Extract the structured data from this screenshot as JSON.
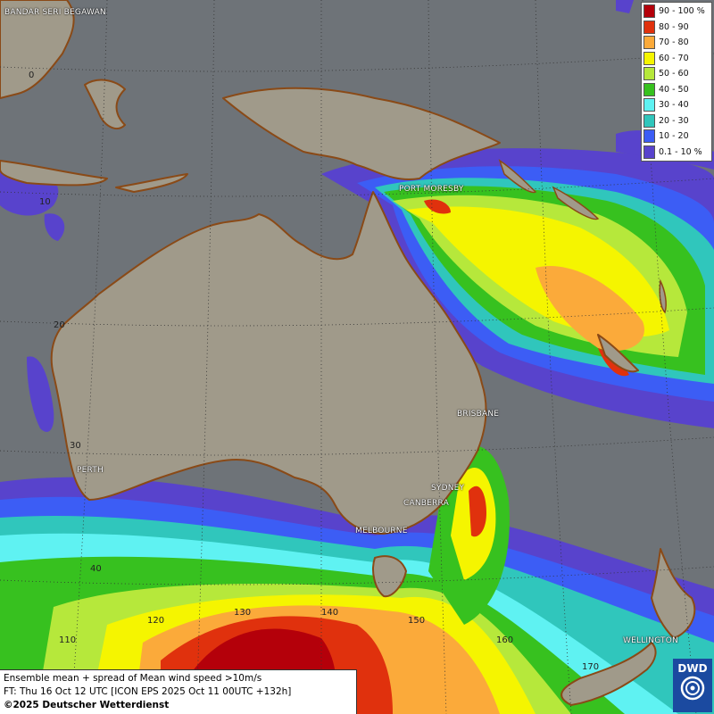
{
  "map": {
    "ocean_color": "#6e7378",
    "land_color": "#a09a8a",
    "coast_color": "#8a4a17"
  },
  "cities": [
    {
      "name": "BANDAR SERI BEGAWAN"
    },
    {
      "name": "PORT MORESBY"
    },
    {
      "name": "BRISBANE"
    },
    {
      "name": "SYDNEY"
    },
    {
      "name": "CANBERRA"
    },
    {
      "name": "MELBOURNE"
    },
    {
      "name": "PERTH"
    },
    {
      "name": "WELLINGTON"
    }
  ],
  "grid_labels": {
    "lat": [
      "0",
      "10",
      "20",
      "30",
      "40"
    ],
    "lon": [
      "110",
      "120",
      "130",
      "140",
      "150",
      "160",
      "170"
    ]
  },
  "legend": {
    "items": [
      {
        "label": "90 - 100 %",
        "color": "#b4000a"
      },
      {
        "label": "80 - 90",
        "color": "#e0310d"
      },
      {
        "label": "70 - 80",
        "color": "#fbaa3a"
      },
      {
        "label": "60 - 70",
        "color": "#f5f500"
      },
      {
        "label": "50 - 60",
        "color": "#b6e83b"
      },
      {
        "label": "40 - 50",
        "color": "#37c11f"
      },
      {
        "label": "30 - 40",
        "color": "#5ff2f2"
      },
      {
        "label": "20 - 30",
        "color": "#30c6bc"
      },
      {
        "label": "10 - 20",
        "color": "#3c5df5"
      },
      {
        "label": "0.1 - 10 %",
        "color": "#5843cc"
      }
    ]
  },
  "info": {
    "line1": "Ensemble mean + spread of Mean wind speed >10m/s",
    "line2": "FT: Thu 16 Oct 12 UTC [ICON EPS 2025 Oct 11 00UTC +132h]",
    "copyright": "©2025 Deutscher Wetterdienst"
  },
  "logo": {
    "text": "DWD"
  }
}
